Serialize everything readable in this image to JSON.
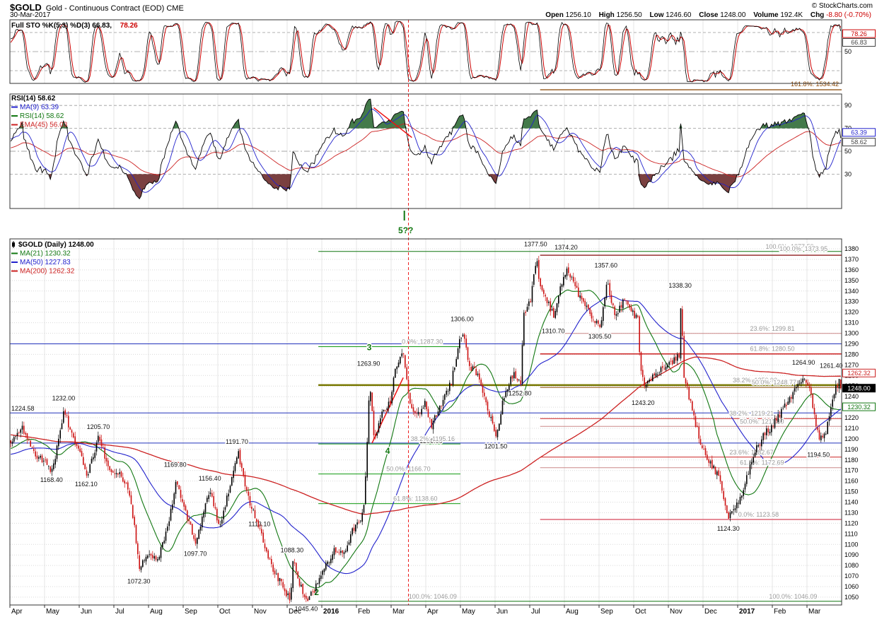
{
  "header": {
    "symbol": "$GOLD",
    "title": "Gold - Continuous Contract (EOD) CME",
    "credit": "© StockCharts.com",
    "date": "30-Mar-2017",
    "quote": {
      "open_label": "Open",
      "open": "1256.10",
      "high_label": "High",
      "high": "1256.50",
      "low_label": "Low",
      "low": "1246.60",
      "close_label": "Close",
      "close": "1248.00",
      "volume_label": "Volume",
      "volume": "192.4K",
      "chg_label": "Chg",
      "chg": "-8.80 (-0.70%)"
    }
  },
  "x_axis": {
    "labels": [
      "Apr",
      "May",
      "Jun",
      "Jul",
      "Aug",
      "Sep",
      "Oct",
      "Nov",
      "Dec",
      "2016",
      "Feb",
      "Mar",
      "Apr",
      "May",
      "Jun",
      "Jul",
      "Aug",
      "Sep",
      "Oct",
      "Nov",
      "Dec",
      "2017",
      "Feb",
      "Mar"
    ]
  },
  "panels": {
    "stoch": {
      "legend_main": "Full STO %K(5,3) %D(3) 66.83,",
      "legend_red": "78.26",
      "grid_label": "50",
      "tags": [
        {
          "v": 78.26,
          "text": "78.26",
          "color": "#cc0000"
        },
        {
          "v": 64.5,
          "text": "66.83",
          "color": "#444444"
        }
      ],
      "fib_label": {
        "text": "161.8%: 1534.42",
        "color": "#884400"
      }
    },
    "rsi": {
      "legend": [
        {
          "text": "RSI(14) 58.62",
          "color": "#000000",
          "mark": false
        },
        {
          "text": "MA(9) 63.39",
          "color": "#2222cc",
          "mark": true
        },
        {
          "text": "RSI(14) 58.62",
          "color": "#117711",
          "mark": true
        },
        {
          "text": "EMA(45) 56.03",
          "color": "#cc2222",
          "mark": true
        }
      ],
      "axis_labels": [
        {
          "v": 90,
          "text": "90"
        },
        {
          "v": 70,
          "text": "70"
        },
        {
          "v": 50,
          "text": "50"
        },
        {
          "v": 30,
          "text": "30"
        }
      ],
      "tags": [
        {
          "v": 66.5,
          "text": "63.39",
          "color": "#2222cc"
        },
        {
          "v": 58.0,
          "text": "58.62",
          "color": "#444444"
        }
      ]
    },
    "price": {
      "legend": [
        {
          "text": "$GOLD (Daily) 1248.00",
          "color": "#000000",
          "mark": false
        },
        {
          "text": "MA(21) 1230.32",
          "color": "#117711",
          "mark": true
        },
        {
          "text": "MA(50) 1227.83",
          "color": "#2222cc",
          "mark": true
        },
        {
          "text": "MA(200) 1262.32",
          "color": "#cc2222",
          "mark": true
        }
      ],
      "tags": [
        {
          "v": 1262.32,
          "text": "1262.32",
          "color": "#cc2222",
          "filled": false
        },
        {
          "v": 1248.0,
          "text": "1248.00",
          "color": "#000000",
          "filled": true
        },
        {
          "v": 1230.32,
          "text": "1230.32",
          "color": "#117711",
          "filled": false
        }
      ],
      "left_line_label": {
        "text": "1224.58",
        "v": 1224.58
      }
    }
  },
  "chart_data": {
    "type": "candlestick",
    "symbol": "$GOLD",
    "timeframe": "Daily",
    "title": "Gold - Continuous Contract (EOD) CME",
    "last_ohlc": {
      "open": 1256.1,
      "high": 1256.5,
      "low": 1246.6,
      "close": 1248.0,
      "prev_close": 1256.8
    },
    "price_axis": {
      "min": 1050,
      "max": 1380,
      "step": 10
    },
    "indicators": {
      "upper": "Full STO %K(5,3) %D(3) 66.83, 78.26",
      "middle": [
        "RSI(14) 58.62",
        "MA(9) 63.39",
        "EMA(45) 56.03"
      ],
      "overlays": [
        "MA(21) 1230.32",
        "MA(50) 1227.83",
        "MA(200) 1262.32"
      ]
    },
    "price_waypoints": [
      [
        -10,
        1255
      ],
      [
        -8,
        1222
      ],
      [
        -6,
        1198
      ],
      [
        -4,
        1208
      ],
      [
        -2,
        1178
      ],
      [
        -0.7,
        1188
      ],
      [
        0,
        1198
      ],
      [
        0.35,
        1210
      ],
      [
        0.7,
        1184
      ],
      [
        1.05,
        1176
      ],
      [
        1.2,
        1168
      ],
      [
        1.55,
        1228
      ],
      [
        1.75,
        1204
      ],
      [
        2,
        1188
      ],
      [
        2.2,
        1164
      ],
      [
        2.55,
        1203
      ],
      [
        2.8,
        1172
      ],
      [
        3.1,
        1168
      ],
      [
        3.45,
        1148
      ],
      [
        3.72,
        1075
      ],
      [
        3.95,
        1092
      ],
      [
        4.25,
        1086
      ],
      [
        4.55,
        1120
      ],
      [
        4.77,
        1158
      ],
      [
        5,
        1135
      ],
      [
        5.35,
        1102
      ],
      [
        5.6,
        1138
      ],
      [
        5.77,
        1152
      ],
      [
        6,
        1116
      ],
      [
        6.3,
        1150
      ],
      [
        6.55,
        1188
      ],
      [
        6.85,
        1145
      ],
      [
        7.2,
        1113
      ],
      [
        7.5,
        1082
      ],
      [
        7.9,
        1057
      ],
      [
        8.07,
        1048
      ],
      [
        8.14,
        1084
      ],
      [
        8.35,
        1062
      ],
      [
        8.55,
        1046
      ],
      [
        8.85,
        1062
      ],
      [
        9.1,
        1080
      ],
      [
        9.35,
        1096
      ],
      [
        9.6,
        1088
      ],
      [
        9.85,
        1112
      ],
      [
        10.05,
        1120
      ],
      [
        10.18,
        1132
      ],
      [
        10.28,
        1190
      ],
      [
        10.36,
        1258
      ],
      [
        10.48,
        1198
      ],
      [
        10.7,
        1224
      ],
      [
        10.95,
        1236
      ],
      [
        11.1,
        1268
      ],
      [
        11.33,
        1282
      ],
      [
        11.55,
        1228
      ],
      [
        11.75,
        1222
      ],
      [
        11.95,
        1234
      ],
      [
        12.15,
        1212
      ],
      [
        12.4,
        1232
      ],
      [
        12.7,
        1252
      ],
      [
        12.95,
        1292
      ],
      [
        13.05,
        1302
      ],
      [
        13.2,
        1272
      ],
      [
        13.5,
        1258
      ],
      [
        13.8,
        1222
      ],
      [
        14.02,
        1204
      ],
      [
        14.25,
        1244
      ],
      [
        14.5,
        1262
      ],
      [
        14.72,
        1254
      ],
      [
        14.8,
        1318
      ],
      [
        15,
        1330
      ],
      [
        15.12,
        1360
      ],
      [
        15.17,
        1373
      ],
      [
        15.25,
        1346
      ],
      [
        15.35,
        1338
      ],
      [
        15.6,
        1322
      ],
      [
        15.68,
        1313
      ],
      [
        15.85,
        1342
      ],
      [
        16.05,
        1364
      ],
      [
        16.3,
        1342
      ],
      [
        16.6,
        1326
      ],
      [
        16.85,
        1312
      ],
      [
        17.02,
        1308
      ],
      [
        17.2,
        1350
      ],
      [
        17.45,
        1314
      ],
      [
        17.7,
        1334
      ],
      [
        17.95,
        1320
      ],
      [
        18.1,
        1312
      ],
      [
        18.17,
        1268
      ],
      [
        18.27,
        1252
      ],
      [
        18.55,
        1258
      ],
      [
        18.85,
        1268
      ],
      [
        19.1,
        1274
      ],
      [
        19.3,
        1278
      ],
      [
        19.34,
        1330
      ],
      [
        19.42,
        1262
      ],
      [
        19.7,
        1222
      ],
      [
        19.95,
        1192
      ],
      [
        20.2,
        1176
      ],
      [
        20.45,
        1162
      ],
      [
        20.7,
        1128
      ],
      [
        20.75,
        1126
      ],
      [
        20.95,
        1138
      ],
      [
        21.2,
        1158
      ],
      [
        21.45,
        1186
      ],
      [
        21.7,
        1202
      ],
      [
        21.95,
        1212
      ],
      [
        22.2,
        1224
      ],
      [
        22.5,
        1240
      ],
      [
        22.75,
        1252
      ],
      [
        22.9,
        1258
      ],
      [
        23.05,
        1246
      ],
      [
        23.2,
        1222
      ],
      [
        23.33,
        1198
      ],
      [
        23.5,
        1204
      ],
      [
        23.65,
        1230
      ],
      [
        23.85,
        1252
      ],
      [
        23.97,
        1249
      ]
    ],
    "pivot_labels": [
      {
        "t": 1.55,
        "p": 1233,
        "text": "1232.00",
        "pos": "above"
      },
      {
        "t": 1.2,
        "p": 1167,
        "text": "1168.40",
        "pos": "below"
      },
      {
        "t": 2.2,
        "p": 1163,
        "text": "1162.10",
        "pos": "below"
      },
      {
        "t": 2.55,
        "p": 1206,
        "text": "1205.70",
        "pos": "above"
      },
      {
        "t": 3.72,
        "p": 1071,
        "text": "1072.30",
        "pos": "below"
      },
      {
        "t": 4.77,
        "p": 1170,
        "text": "1169.80",
        "pos": "above"
      },
      {
        "t": 5.35,
        "p": 1097,
        "text": "1097.70",
        "pos": "below"
      },
      {
        "t": 5.77,
        "p": 1157,
        "text": "1156.40",
        "pos": "above"
      },
      {
        "t": 6.55,
        "p": 1192,
        "text": "1191.70",
        "pos": "above"
      },
      {
        "t": 7.2,
        "p": 1114,
        "text": "1113.10",
        "pos": "above"
      },
      {
        "t": 8.14,
        "p": 1089,
        "text": "1088.30",
        "pos": "above"
      },
      {
        "t": 8.55,
        "p": 1045,
        "text": "1045.40",
        "pos": "below"
      },
      {
        "t": 10.35,
        "p": 1266,
        "text": "1263.90",
        "pos": "above"
      },
      {
        "t": 12.15,
        "p": 1204,
        "text": "1206.00",
        "pos": "below"
      },
      {
        "t": 13.05,
        "p": 1308,
        "text": "1306.00",
        "pos": "above"
      },
      {
        "t": 14.02,
        "p": 1199,
        "text": "1201.50",
        "pos": "below"
      },
      {
        "t": 14.72,
        "p": 1249,
        "text": "1252.80",
        "pos": "below"
      },
      {
        "t": 15.17,
        "p": 1379,
        "text": "1377.50",
        "pos": "above"
      },
      {
        "t": 15.68,
        "p": 1308,
        "text": "1310.70",
        "pos": "below"
      },
      {
        "t": 16.05,
        "p": 1376,
        "text": "1374.20",
        "pos": "above"
      },
      {
        "t": 17.02,
        "p": 1303,
        "text": "1305.50",
        "pos": "below"
      },
      {
        "t": 17.2,
        "p": 1359,
        "text": "1357.60",
        "pos": "above"
      },
      {
        "t": 18.27,
        "p": 1240,
        "text": "1243.20",
        "pos": "below"
      },
      {
        "t": 19.34,
        "p": 1340,
        "text": "1338.30",
        "pos": "above"
      },
      {
        "t": 20.73,
        "p": 1121,
        "text": "1124.30",
        "pos": "below"
      },
      {
        "t": 22.9,
        "p": 1267,
        "text": "1264.90",
        "pos": "above"
      },
      {
        "t": 23.33,
        "p": 1191,
        "text": "1194.50",
        "pos": "below"
      },
      {
        "t": 23.7,
        "p": 1264,
        "text": "1261.40",
        "pos": "above"
      }
    ],
    "fib_labels": [
      {
        "t": 11.9,
        "p": 1287.3,
        "text": "0.0%: 1287.30"
      },
      {
        "t": 12.2,
        "p": 1195.16,
        "text": "38.2%: 1195.16"
      },
      {
        "t": 11.5,
        "p": 1166.7,
        "text": "50.0%: 1166.70"
      },
      {
        "t": 11.7,
        "p": 1138.6,
        "text": "61.8%: 1138.60"
      },
      {
        "t": 12.2,
        "p": 1046.09,
        "text": "100.0%: 1046.09"
      },
      {
        "t": 22.5,
        "p": 1377.5,
        "text": "100.0%: 1377.50"
      },
      {
        "t": 22.9,
        "p": 1375.2,
        "text": "100.0%: 1373.95"
      },
      {
        "t": 22.0,
        "p": 1299.81,
        "text": "23.6%: 1299.81"
      },
      {
        "t": 22.0,
        "p": 1280.5,
        "text": "61.8%: 1280.50"
      },
      {
        "t": 21.5,
        "p": 1250.9,
        "text": "38.2%: 1250.90"
      },
      {
        "t": 22.05,
        "p": 1248.77,
        "text": "50.0%: 1248.77"
      },
      {
        "t": 21.4,
        "p": 1219.21,
        "text": "38.2%: 1219.21"
      },
      {
        "t": 21.7,
        "p": 1211.8,
        "text": "50.0%: 1211.80"
      },
      {
        "t": 21.4,
        "p": 1182.67,
        "text": "23.6%: 1182.67"
      },
      {
        "t": 21.7,
        "p": 1172.69,
        "text": "61.8%: 1172.69"
      },
      {
        "t": 21.6,
        "p": 1123.58,
        "text": "0.0%: 1123.58"
      },
      {
        "t": 22.6,
        "p": 1046.09,
        "text": "100.0%: 1046.09"
      }
    ],
    "lines": [
      {
        "p": 1290,
        "from": 0,
        "to": 24,
        "color": "#2233bb",
        "w": 1
      },
      {
        "p": 1224.58,
        "from": 0,
        "to": 24,
        "color": "#2233bb",
        "w": 1
      },
      {
        "p": 1196,
        "from": 0,
        "to": 24,
        "color": "#2233bb",
        "w": 1
      },
      {
        "p": 1377.5,
        "from": 8.9,
        "to": 24,
        "color": "#117711",
        "w": 1
      },
      {
        "p": 1250.9,
        "from": 8.9,
        "to": 24,
        "color": "#777700",
        "w": 2.5
      },
      {
        "p": 1248.77,
        "from": 15.3,
        "to": 24,
        "color": "#884400",
        "w": 1
      },
      {
        "p": 1046.09,
        "from": 8.9,
        "to": 24,
        "color": "#117711",
        "w": 1
      },
      {
        "p": 1299.81,
        "from": 15.3,
        "to": 24,
        "color": "#cc8888",
        "w": 1
      },
      {
        "p": 1211.8,
        "from": 15.3,
        "to": 24,
        "color": "#cc8888",
        "w": 1
      },
      {
        "p": 1172.69,
        "from": 15.3,
        "to": 24,
        "color": "#cc8888",
        "w": 1
      },
      {
        "p": 1373.95,
        "from": 15.3,
        "to": 24,
        "color": "#993333",
        "w": 1.5
      },
      {
        "p": 1280.5,
        "from": 15.3,
        "to": 24,
        "color": "#cc2222",
        "w": 1.5
      },
      {
        "p": 1219.21,
        "from": 15.3,
        "to": 24,
        "color": "#cc2222",
        "w": 1
      },
      {
        "p": 1182.67,
        "from": 15.3,
        "to": 24,
        "color": "#cc2222",
        "w": 1
      },
      {
        "p": 1123.58,
        "from": 15.3,
        "to": 24,
        "color": "#dd6677",
        "w": 1.5
      },
      {
        "p": 1287.3,
        "from": 8.9,
        "to": 13,
        "color": "#119911",
        "w": 1
      },
      {
        "p": 1195.16,
        "from": 8.9,
        "to": 13,
        "color": "#119911",
        "w": 1
      },
      {
        "p": 1166.7,
        "from": 8.9,
        "to": 13,
        "color": "#119911",
        "w": 1
      },
      {
        "p": 1138.6,
        "from": 8.9,
        "to": 13,
        "color": "#119911",
        "w": 1
      }
    ],
    "vline": {
      "t": 11.5,
      "color": "#ee2222"
    },
    "elliott": [
      {
        "t": 8.85,
        "p": 1052,
        "text": "2"
      },
      {
        "t": 10.37,
        "p": 1284,
        "text": "3"
      },
      {
        "t": 10.9,
        "p": 1186,
        "text": "4"
      }
    ],
    "wave5_label": {
      "t": 11.3,
      "text": "5??",
      "color": "#117711"
    },
    "trendlines": [
      {
        "panel": "price",
        "t1": 10.45,
        "p1": 1196,
        "t2": 11.35,
        "p2": 1258,
        "color": "#ee1111",
        "w": 1.5
      },
      {
        "panel": "rsi",
        "t1": 10.5,
        "v1": 88,
        "t2": 11.6,
        "v2": 62,
        "color": "#ee1111",
        "w": 1.5
      }
    ]
  }
}
